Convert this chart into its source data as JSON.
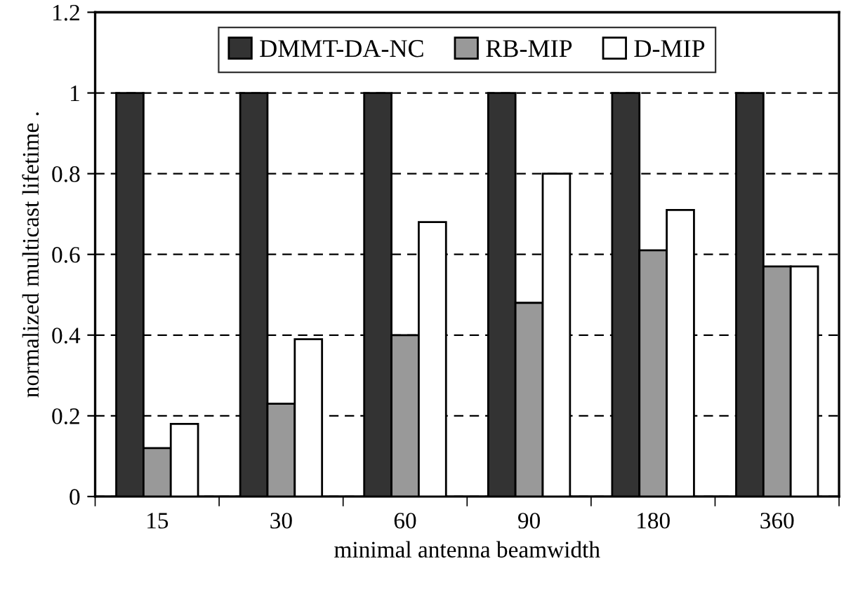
{
  "chart_data": {
    "type": "bar",
    "xlabel": "minimal antenna beamwidth",
    "ylabel": "normalized multicast lifetime .",
    "categories": [
      "15",
      "30",
      "60",
      "90",
      "180",
      "360"
    ],
    "series": [
      {
        "name": "DMMT-DA-NC",
        "color": "#333333",
        "values": [
          1,
          1,
          1,
          1,
          1,
          1
        ]
      },
      {
        "name": "RB-MIP",
        "color": "#999999",
        "values": [
          0.12,
          0.23,
          0.4,
          0.48,
          0.61,
          0.57
        ]
      },
      {
        "name": "D-MIP",
        "color": "#ffffff",
        "values": [
          0.18,
          0.39,
          0.68,
          0.8,
          0.71,
          0.57
        ]
      }
    ],
    "ylim": [
      0,
      1.2
    ],
    "yticks": [
      0,
      {
        "value": 0.2,
        "label": "0.2"
      },
      {
        "value": 0.4,
        "label": "0.4"
      },
      {
        "value": 0.6,
        "label": "0.6"
      },
      {
        "value": 0.8,
        "label": "0.8"
      },
      1,
      {
        "value": 1.2,
        "label": "1.2"
      }
    ],
    "grid": "y",
    "legend": "top"
  }
}
